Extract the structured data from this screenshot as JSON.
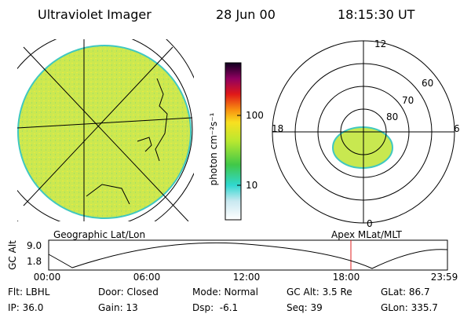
{
  "header": {
    "title": "Ultraviolet Imager",
    "date": "28 Jun 00",
    "time": "18:15:30 UT"
  },
  "colorbar": {
    "label": "photon cm⁻²s⁻¹",
    "ticks": [
      "100",
      "10"
    ]
  },
  "polar": {
    "mlt_labels": [
      "12",
      "18",
      "6",
      "0"
    ],
    "lat_labels": [
      "60",
      "70",
      "80"
    ]
  },
  "altitude": {
    "left_title": "Geographic Lat/Lon",
    "right_title": "Apex MLat/MLT",
    "axis_label": "GC Alt",
    "yticks": [
      "9.0",
      "1.8"
    ],
    "xticks": [
      "00:00",
      "06:00",
      "12:00",
      "18:00",
      "23:59"
    ]
  },
  "info": {
    "rows": [
      [
        "Flt: LBHL",
        "Door: Closed",
        "Mode: Normal",
        "GC Alt: 3.5 Re",
        "GLat: 86.7"
      ],
      [
        "IP: 36.0",
        "Gain: 13",
        "Dsp:  -6.1",
        "Seq: 39",
        "GLon: 335.7"
      ]
    ]
  }
}
